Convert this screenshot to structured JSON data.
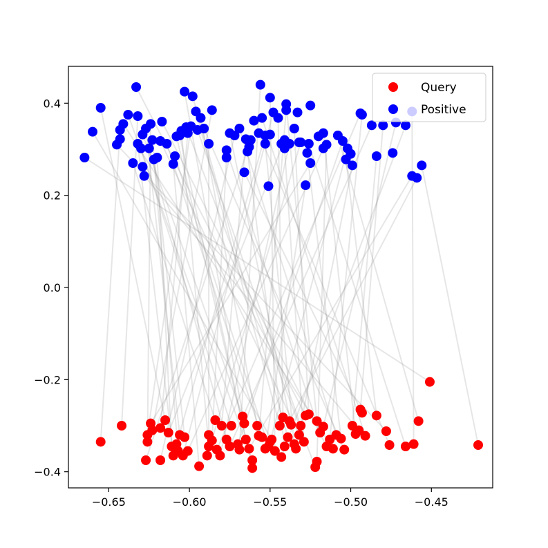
{
  "chart_data": {
    "type": "scatter",
    "title": "",
    "xlabel": "",
    "ylabel": "",
    "xlim": [
      -0.675,
      -0.412
    ],
    "ylim": [
      -0.435,
      0.48
    ],
    "xticks": [
      -0.65,
      -0.6,
      -0.55,
      -0.5,
      -0.45
    ],
    "xtick_labels": [
      "−0.65",
      "−0.60",
      "−0.55",
      "−0.50",
      "−0.45"
    ],
    "yticks": [
      -0.4,
      -0.2,
      0.0,
      0.2,
      0.4
    ],
    "ytick_labels": [
      "−0.4",
      "−0.2",
      "0.0",
      "0.2",
      "0.4"
    ],
    "grid": false,
    "legend_position": "top-right",
    "line_color": "#808080",
    "series": [
      {
        "name": "Query",
        "color": "#ff0000",
        "points": [
          [
            -0.655,
            -0.335
          ],
          [
            -0.642,
            -0.3
          ],
          [
            -0.627,
            -0.375
          ],
          [
            -0.626,
            -0.335
          ],
          [
            -0.626,
            -0.32
          ],
          [
            -0.624,
            -0.295
          ],
          [
            -0.623,
            -0.31
          ],
          [
            -0.618,
            -0.375
          ],
          [
            -0.618,
            -0.305
          ],
          [
            -0.615,
            -0.288
          ],
          [
            -0.613,
            -0.315
          ],
          [
            -0.611,
            -0.345
          ],
          [
            -0.61,
            -0.365
          ],
          [
            -0.608,
            -0.34
          ],
          [
            -0.607,
            -0.355
          ],
          [
            -0.606,
            -0.32
          ],
          [
            -0.604,
            -0.365
          ],
          [
            -0.603,
            -0.325
          ],
          [
            -0.601,
            -0.355
          ],
          [
            -0.594,
            -0.388
          ],
          [
            -0.589,
            -0.365
          ],
          [
            -0.588,
            -0.345
          ],
          [
            -0.588,
            -0.32
          ],
          [
            -0.586,
            -0.332
          ],
          [
            -0.584,
            -0.288
          ],
          [
            -0.583,
            -0.352
          ],
          [
            -0.581,
            -0.365
          ],
          [
            -0.58,
            -0.3
          ],
          [
            -0.577,
            -0.33
          ],
          [
            -0.575,
            -0.345
          ],
          [
            -0.574,
            -0.3
          ],
          [
            -0.57,
            -0.34
          ],
          [
            -0.569,
            -0.352
          ],
          [
            -0.567,
            -0.28
          ],
          [
            -0.566,
            -0.295
          ],
          [
            -0.565,
            -0.33
          ],
          [
            -0.563,
            -0.35
          ],
          [
            -0.561,
            -0.375
          ],
          [
            -0.561,
            -0.392
          ],
          [
            -0.558,
            -0.3
          ],
          [
            -0.557,
            -0.322
          ],
          [
            -0.555,
            -0.325
          ],
          [
            -0.553,
            -0.35
          ],
          [
            -0.551,
            -0.345
          ],
          [
            -0.55,
            -0.335
          ],
          [
            -0.549,
            -0.33
          ],
          [
            -0.547,
            -0.355
          ],
          [
            -0.544,
            -0.3
          ],
          [
            -0.543,
            -0.368
          ],
          [
            -0.542,
            -0.282
          ],
          [
            -0.541,
            -0.345
          ],
          [
            -0.539,
            -0.325
          ],
          [
            -0.538,
            -0.29
          ],
          [
            -0.537,
            -0.298
          ],
          [
            -0.535,
            -0.34
          ],
          [
            -0.534,
            -0.35
          ],
          [
            -0.532,
            -0.32
          ],
          [
            -0.531,
            -0.3
          ],
          [
            -0.529,
            -0.335
          ],
          [
            -0.528,
            -0.278
          ],
          [
            -0.526,
            -0.275
          ],
          [
            -0.522,
            -0.39
          ],
          [
            -0.521,
            -0.378
          ],
          [
            -0.521,
            -0.29
          ],
          [
            -0.519,
            -0.315
          ],
          [
            -0.517,
            -0.302
          ],
          [
            -0.515,
            -0.345
          ],
          [
            -0.513,
            -0.33
          ],
          [
            -0.511,
            -0.35
          ],
          [
            -0.509,
            -0.32
          ],
          [
            -0.506,
            -0.328
          ],
          [
            -0.504,
            -0.352
          ],
          [
            -0.499,
            -0.3
          ],
          [
            -0.497,
            -0.318
          ],
          [
            -0.495,
            -0.31
          ],
          [
            -0.494,
            -0.265
          ],
          [
            -0.493,
            -0.272
          ],
          [
            -0.491,
            -0.322
          ],
          [
            -0.484,
            -0.278
          ],
          [
            -0.478,
            -0.312
          ],
          [
            -0.476,
            -0.342
          ],
          [
            -0.466,
            -0.345
          ],
          [
            -0.461,
            -0.34
          ],
          [
            -0.458,
            -0.29
          ],
          [
            -0.451,
            -0.205
          ],
          [
            -0.421,
            -0.342
          ]
        ]
      },
      {
        "name": "Positive",
        "color": "#0000ff",
        "points": [
          [
            -0.665,
            0.282
          ],
          [
            -0.66,
            0.338
          ],
          [
            -0.655,
            0.39
          ],
          [
            -0.645,
            0.31
          ],
          [
            -0.643,
            0.322
          ],
          [
            -0.643,
            0.342
          ],
          [
            -0.641,
            0.355
          ],
          [
            -0.638,
            0.375
          ],
          [
            -0.635,
            0.27
          ],
          [
            -0.633,
            0.435
          ],
          [
            -0.632,
            0.372
          ],
          [
            -0.632,
            0.312
          ],
          [
            -0.63,
            0.302
          ],
          [
            -0.629,
            0.262
          ],
          [
            -0.629,
            0.332
          ],
          [
            -0.628,
            0.242
          ],
          [
            -0.627,
            0.345
          ],
          [
            -0.625,
            0.302
          ],
          [
            -0.624,
            0.355
          ],
          [
            -0.623,
            0.32
          ],
          [
            -0.622,
            0.278
          ],
          [
            -0.62,
            0.282
          ],
          [
            -0.618,
            0.318
          ],
          [
            -0.617,
            0.36
          ],
          [
            -0.614,
            0.312
          ],
          [
            -0.61,
            0.268
          ],
          [
            -0.609,
            0.285
          ],
          [
            -0.608,
            0.328
          ],
          [
            -0.606,
            0.33
          ],
          [
            -0.605,
            0.34
          ],
          [
            -0.603,
            0.425
          ],
          [
            -0.602,
            0.348
          ],
          [
            -0.601,
            0.335
          ],
          [
            -0.599,
            0.35
          ],
          [
            -0.598,
            0.415
          ],
          [
            -0.596,
            0.382
          ],
          [
            -0.595,
            0.342
          ],
          [
            -0.593,
            0.368
          ],
          [
            -0.591,
            0.345
          ],
          [
            -0.588,
            0.312
          ],
          [
            -0.586,
            0.385
          ],
          [
            -0.577,
            0.298
          ],
          [
            -0.577,
            0.282
          ],
          [
            -0.575,
            0.335
          ],
          [
            -0.572,
            0.33
          ],
          [
            -0.569,
            0.345
          ],
          [
            -0.566,
            0.25
          ],
          [
            -0.565,
            0.322
          ],
          [
            -0.564,
            0.295
          ],
          [
            -0.563,
            0.305
          ],
          [
            -0.562,
            0.32
          ],
          [
            -0.56,
            0.362
          ],
          [
            -0.557,
            0.335
          ],
          [
            -0.556,
            0.44
          ],
          [
            -0.555,
            0.368
          ],
          [
            -0.553,
            0.312
          ],
          [
            -0.553,
            0.33
          ],
          [
            -0.551,
            0.22
          ],
          [
            -0.55,
            0.412
          ],
          [
            -0.55,
            0.332
          ],
          [
            -0.548,
            0.38
          ],
          [
            -0.545,
            0.368
          ],
          [
            -0.543,
            0.312
          ],
          [
            -0.541,
            0.32
          ],
          [
            -0.541,
            0.302
          ],
          [
            -0.54,
            0.398
          ],
          [
            -0.54,
            0.385
          ],
          [
            -0.538,
            0.312
          ],
          [
            -0.535,
            0.345
          ],
          [
            -0.533,
            0.38
          ],
          [
            -0.532,
            0.315
          ],
          [
            -0.531,
            0.315
          ],
          [
            -0.528,
            0.222
          ],
          [
            -0.527,
            0.292
          ],
          [
            -0.526,
            0.312
          ],
          [
            -0.525,
            0.27
          ],
          [
            -0.525,
            0.395
          ],
          [
            -0.52,
            0.328
          ],
          [
            -0.517,
            0.302
          ],
          [
            -0.517,
            0.335
          ],
          [
            -0.515,
            0.31
          ],
          [
            -0.508,
            0.33
          ],
          [
            -0.505,
            0.318
          ],
          [
            -0.503,
            0.278
          ],
          [
            -0.502,
            0.302
          ],
          [
            -0.5,
            0.29
          ],
          [
            -0.499,
            0.265
          ],
          [
            -0.494,
            0.378
          ],
          [
            -0.493,
            0.375
          ],
          [
            -0.487,
            0.352
          ],
          [
            -0.484,
            0.285
          ],
          [
            -0.48,
            0.352
          ],
          [
            -0.474,
            0.292
          ],
          [
            -0.472,
            0.358
          ],
          [
            -0.466,
            0.352
          ],
          [
            -0.462,
            0.242
          ],
          [
            -0.462,
            0.382
          ],
          [
            -0.459,
            0.238
          ],
          [
            -0.456,
            0.265
          ]
        ]
      }
    ],
    "pairs": [
      [
        0,
        5
      ],
      [
        1,
        10
      ],
      [
        2,
        50
      ],
      [
        3,
        18
      ],
      [
        4,
        33
      ],
      [
        5,
        75
      ],
      [
        6,
        40
      ],
      [
        7,
        44
      ],
      [
        8,
        32
      ],
      [
        9,
        2
      ],
      [
        10,
        63
      ],
      [
        11,
        21
      ],
      [
        12,
        11
      ],
      [
        13,
        56
      ],
      [
        14,
        20
      ],
      [
        15,
        16
      ],
      [
        16,
        60
      ],
      [
        17,
        19
      ],
      [
        18,
        78
      ],
      [
        19,
        25
      ],
      [
        20,
        71
      ],
      [
        21,
        29
      ],
      [
        22,
        39
      ],
      [
        23,
        42
      ],
      [
        24,
        8
      ],
      [
        25,
        87
      ],
      [
        26,
        67
      ],
      [
        27,
        47
      ],
      [
        28,
        17
      ],
      [
        29,
        89
      ],
      [
        30,
        12
      ],
      [
        31,
        82
      ],
      [
        32,
        53
      ],
      [
        33,
        14
      ],
      [
        34,
        30
      ],
      [
        35,
        27
      ],
      [
        36,
        95
      ],
      [
        37,
        7
      ],
      [
        38,
        28
      ],
      [
        39,
        37
      ],
      [
        40,
        66
      ],
      [
        41,
        24
      ],
      [
        42,
        72
      ],
      [
        43,
        26
      ],
      [
        44,
        84
      ],
      [
        45,
        1
      ],
      [
        46,
        58
      ],
      [
        47,
        35
      ],
      [
        48,
        94
      ],
      [
        49,
        61
      ],
      [
        50,
        48
      ],
      [
        51,
        34
      ],
      [
        52,
        97
      ],
      [
        53,
        43
      ],
      [
        54,
        55
      ],
      [
        55,
        86
      ],
      [
        56,
        22
      ],
      [
        57,
        36
      ],
      [
        58,
        64
      ],
      [
        59,
        9
      ],
      [
        60,
        68
      ],
      [
        61,
        31
      ],
      [
        62,
        80
      ],
      [
        63,
        65
      ],
      [
        64,
        41
      ],
      [
        65,
        93
      ],
      [
        66,
        23
      ],
      [
        67,
        88
      ],
      [
        68,
        6
      ],
      [
        69,
        45
      ],
      [
        70,
        73
      ],
      [
        71,
        38
      ],
      [
        72,
        90
      ],
      [
        73,
        79
      ],
      [
        74,
        15
      ],
      [
        75,
        91
      ],
      [
        76,
        46
      ],
      [
        77,
        54
      ],
      [
        78,
        83
      ],
      [
        79,
        3
      ],
      [
        80,
        52
      ],
      [
        81,
        74
      ],
      [
        82,
        96
      ],
      [
        83,
        81
      ],
      [
        84,
        0
      ],
      [
        85,
        98
      ]
    ]
  }
}
